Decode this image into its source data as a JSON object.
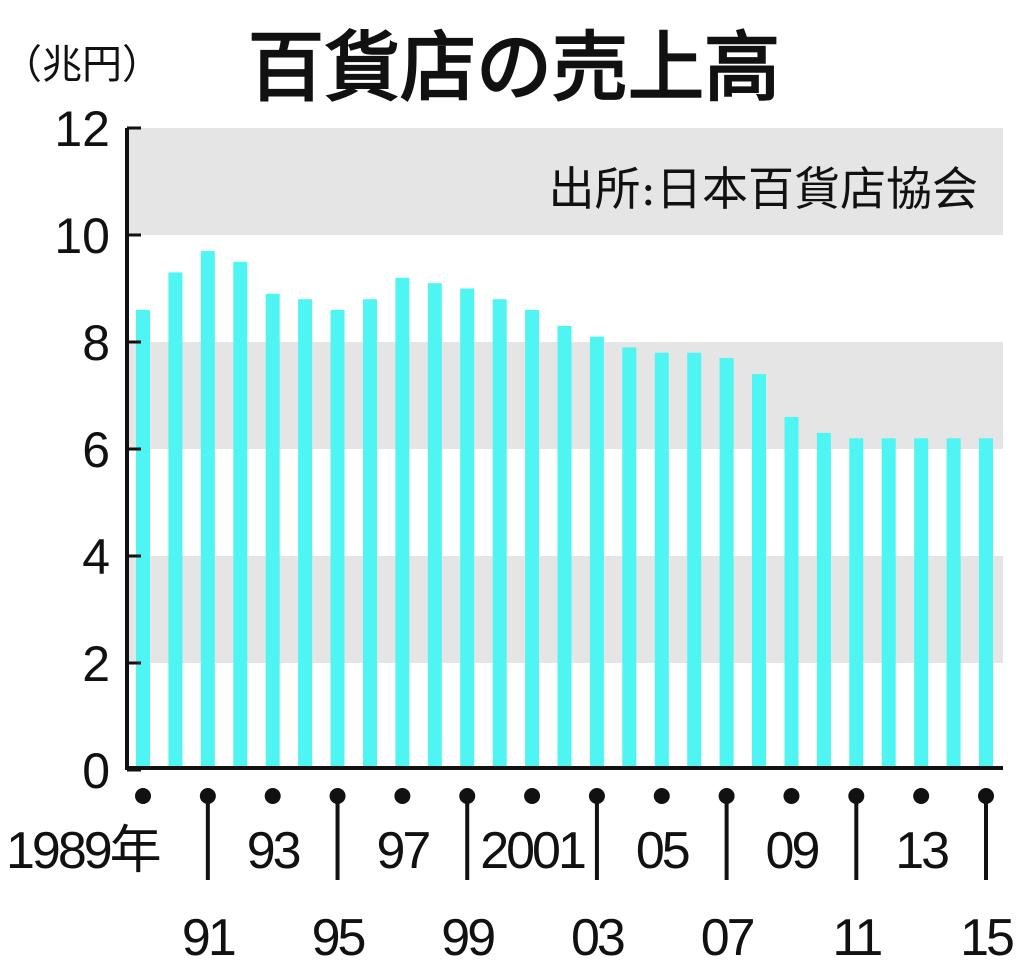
{
  "colors": {
    "bar": "#4ff5f2",
    "band": "#e5e5e5",
    "axis": "#111111"
  },
  "chart_data": {
    "type": "bar",
    "title": "百貨店の売上高",
    "unit_label": "（兆円）",
    "source_note": "出所:日本百貨店協会",
    "categories": [
      "1989",
      "1990",
      "1991",
      "1992",
      "1993",
      "1994",
      "1995",
      "1996",
      "1997",
      "1998",
      "1999",
      "2000",
      "2001",
      "2002",
      "2003",
      "2004",
      "2005",
      "2006",
      "2007",
      "2008",
      "2009",
      "2010",
      "2011",
      "2012",
      "2013",
      "2014",
      "2015"
    ],
    "x_tick_labels": [
      "1989年",
      "91",
      "93",
      "95",
      "97",
      "99",
      "2001",
      "03",
      "05",
      "07",
      "09",
      "11",
      "13",
      "15"
    ],
    "y_ticks": [
      "0",
      "2",
      "4",
      "6",
      "8",
      "10",
      "12"
    ],
    "values": [
      8.6,
      9.3,
      9.7,
      9.5,
      8.9,
      8.8,
      8.6,
      8.8,
      9.2,
      9.1,
      9.0,
      8.8,
      8.6,
      8.3,
      8.1,
      7.9,
      7.8,
      7.8,
      7.7,
      7.4,
      6.6,
      6.3,
      6.2,
      6.2,
      6.2,
      6.2,
      6.2
    ],
    "ylim": [
      0,
      12
    ],
    "grid": "alternating bands"
  }
}
